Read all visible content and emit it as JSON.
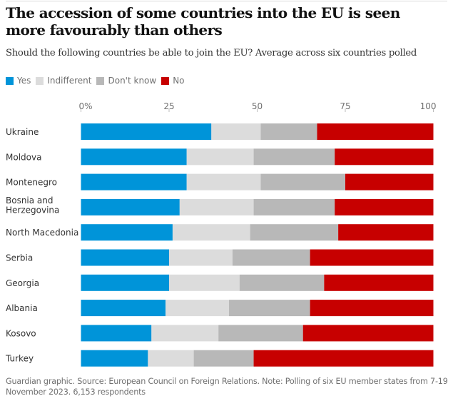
{
  "header": {
    "title": "The accession of some countries into the EU is seen more favourably than others",
    "subtitle": "Should the following countries be able to join the EU? Average across six countries polled"
  },
  "legend": [
    {
      "label": "Yes",
      "color": "#0094d9"
    },
    {
      "label": "Indifferent",
      "color": "#dcdcdc"
    },
    {
      "label": "Don't know",
      "color": "#b8b8b8"
    },
    {
      "label": "No",
      "color": "#c70000"
    }
  ],
  "footer": {
    "source": "Guardian graphic. Source: European Council on Foreign Relations. Note: Polling of six EU member states from 7-19 November 2023. 6,153 respondents"
  },
  "chart_data": {
    "type": "bar",
    "orientation": "horizontal",
    "stacked": true,
    "title": "The accession of some countries into the EU is seen more favourably than others",
    "subtitle": "Should the following countries be able to join the EU? Average across six countries polled",
    "xlabel": "",
    "ylabel": "",
    "xlim": [
      0,
      100
    ],
    "x_ticks": [
      0,
      25,
      50,
      75,
      100
    ],
    "x_tick_labels": [
      "0%",
      "25",
      "50",
      "75",
      "100"
    ],
    "grid": false,
    "legend_position": "top-left",
    "categories": [
      "Ukraine",
      "Moldova",
      "Montenegro",
      "Bosnia and Herzegovina",
      "North Macedonia",
      "Serbia",
      "Georgia",
      "Albania",
      "Kosovo",
      "Turkey"
    ],
    "category_display": [
      [
        "Ukraine"
      ],
      [
        "Moldova"
      ],
      [
        "Montenegro"
      ],
      [
        "Bosnia and",
        "Herzegovina"
      ],
      [
        "North Macedonia"
      ],
      [
        "Serbia"
      ],
      [
        "Georgia"
      ],
      [
        "Albania"
      ],
      [
        "Kosovo"
      ],
      [
        "Turkey"
      ]
    ],
    "series": [
      {
        "name": "Yes",
        "color": "#0094d9",
        "values": [
          37,
          30,
          30,
          28,
          26,
          25,
          25,
          24,
          20,
          19
        ]
      },
      {
        "name": "Indifferent",
        "color": "#dcdcdc",
        "values": [
          14,
          19,
          21,
          21,
          22,
          18,
          20,
          18,
          19,
          13
        ]
      },
      {
        "name": "Don't know",
        "color": "#b8b8b8",
        "values": [
          16,
          23,
          24,
          23,
          25,
          22,
          24,
          23,
          24,
          17
        ]
      },
      {
        "name": "No",
        "color": "#c70000",
        "values": [
          33,
          28,
          25,
          28,
          27,
          35,
          31,
          35,
          37,
          51
        ]
      }
    ]
  }
}
